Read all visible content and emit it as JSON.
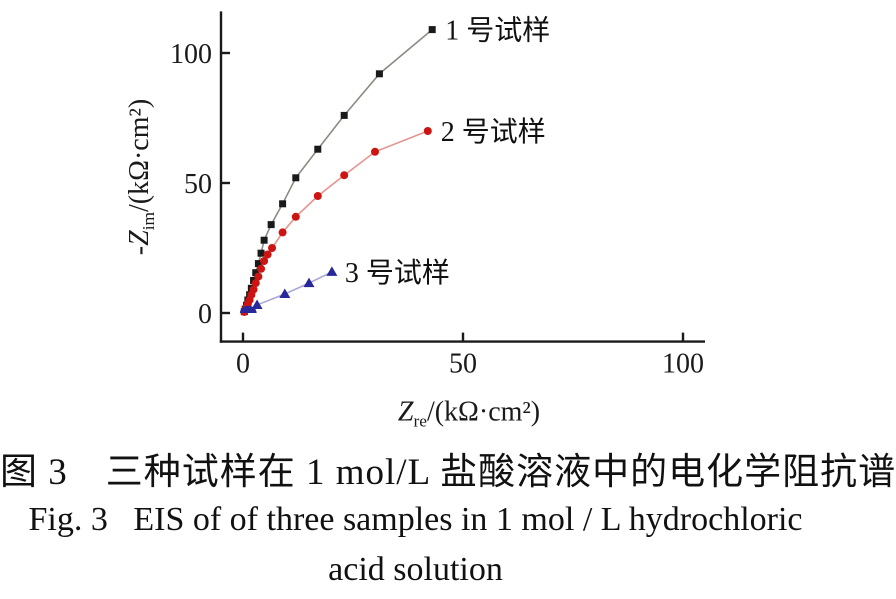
{
  "figure": {
    "captions": {
      "zh": "图 3　三种试样在 1 mol/L 盐酸溶液中的电化学阻抗谱",
      "en_line1": "Fig. 3   EIS of of three samples in 1 mol / L hydrochloric",
      "en_line2": "acid solution"
    }
  },
  "chart_data": {
    "type": "scatter",
    "title": "",
    "xlabel": "Z_{re}/(kΩ·cm²)",
    "ylabel": "-Z_{im}/(kΩ·cm²)",
    "xlim": [
      -5,
      105
    ],
    "ylim": [
      -11,
      116
    ],
    "x_ticks": [
      "0",
      "50",
      "100"
    ],
    "x_tick_values": [
      0,
      50,
      100
    ],
    "y_ticks": [
      "0",
      "50",
      "100"
    ],
    "y_tick_values": [
      0,
      50,
      100
    ],
    "grid": false,
    "legend_position": "inline-annotations",
    "axis_color": "#1a1a1a",
    "series": [
      {
        "name": "1 号试样",
        "marker": "square",
        "marker_color": "#1a1a1a",
        "line_color": "#8b8b82",
        "points": [
          [
            0.3,
            0.5
          ],
          [
            0.5,
            1.5
          ],
          [
            0.8,
            3
          ],
          [
            1.1,
            5
          ],
          [
            1.5,
            7
          ],
          [
            1.9,
            9.5
          ],
          [
            2.4,
            12.5
          ],
          [
            2.9,
            15.5
          ],
          [
            3.5,
            19
          ],
          [
            4.1,
            23
          ],
          [
            4.8,
            28
          ],
          [
            6.4,
            34
          ],
          [
            9,
            42
          ],
          [
            12,
            52
          ],
          [
            17,
            63
          ],
          [
            23,
            76
          ],
          [
            31,
            92
          ],
          [
            43,
            109
          ]
        ]
      },
      {
        "name": "2 号试样",
        "marker": "circle",
        "marker_color": "#cc1512",
        "line_color": "#e5948f",
        "points": [
          [
            0.3,
            0.4
          ],
          [
            0.5,
            1.2
          ],
          [
            0.8,
            2.2
          ],
          [
            1.1,
            3.5
          ],
          [
            1.5,
            5
          ],
          [
            1.9,
            7
          ],
          [
            2.4,
            9
          ],
          [
            2.9,
            11.5
          ],
          [
            3.5,
            14
          ],
          [
            4.1,
            17
          ],
          [
            4.8,
            20
          ],
          [
            5.6,
            22.5
          ],
          [
            6.6,
            25
          ],
          [
            9,
            31
          ],
          [
            12,
            37
          ],
          [
            17,
            45
          ],
          [
            23,
            53
          ],
          [
            30,
            62
          ],
          [
            42,
            70
          ]
        ]
      },
      {
        "name": "3 号试样",
        "marker": "triangle",
        "marker_color": "#28289a",
        "line_color": "#a8a8d8",
        "points": [
          [
            3.2,
            3.1
          ],
          [
            9.5,
            7.3
          ],
          [
            15,
            11.5
          ],
          [
            20.2,
            15.8
          ]
        ],
        "origin_semicircle": {
          "cx": 1.2,
          "rx": 1.9,
          "ry": 2.8
        }
      }
    ],
    "annotations": [
      {
        "text": "1 号试样",
        "x": 43,
        "y": 109,
        "color": "#111111"
      },
      {
        "text": "2 号试样",
        "x": 42,
        "y": 70,
        "color": "#111111"
      },
      {
        "text": "3 号试样",
        "x": 20.2,
        "y": 15.8,
        "color": "#111111"
      }
    ]
  }
}
